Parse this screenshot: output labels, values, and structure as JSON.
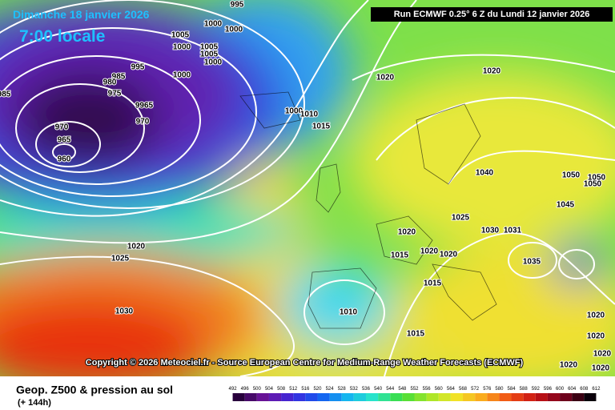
{
  "header": {
    "date": "Dimanche 18 janvier 2026",
    "time": "7:00 locale",
    "run": "Run ECMWF 0.25° 6 Z du Lundi 12 janvier 2026"
  },
  "copyright": "Copyright © 2026 Meteociel.fr - Source European Centre for Medium-Range Weather Forecasts (ECMWF)",
  "footer": {
    "title": "Geop. Z500 & pression au sol",
    "lead": "(+ 144h)"
  },
  "isobar_labels": [
    "995",
    "1000",
    "1000",
    "1005",
    "1000",
    "1005",
    "1005",
    "1000",
    "995",
    "985",
    "980",
    "975",
    "1000",
    "9965",
    "970",
    "970",
    "965",
    "960",
    "985",
    "1000",
    "1010",
    "1015",
    "1020",
    "1020",
    "1040",
    "1050",
    "1050",
    "1050",
    "1045",
    "1025",
    "1020",
    "1030",
    "1031",
    "1015",
    "1020",
    "1020",
    "1035",
    "1020",
    "1025",
    "1030",
    "1010",
    "1015",
    "1015",
    "1020",
    "1020",
    "1020",
    "1020",
    "1020"
  ],
  "legend": {
    "levels": [
      "492",
      "496",
      "500",
      "504",
      "508",
      "512",
      "516",
      "520",
      "524",
      "528",
      "532",
      "536",
      "540",
      "544",
      "548",
      "552",
      "556",
      "560",
      "564",
      "568",
      "572",
      "576",
      "580",
      "584",
      "588",
      "592",
      "596",
      "600",
      "604",
      "608",
      "612"
    ]
  }
}
